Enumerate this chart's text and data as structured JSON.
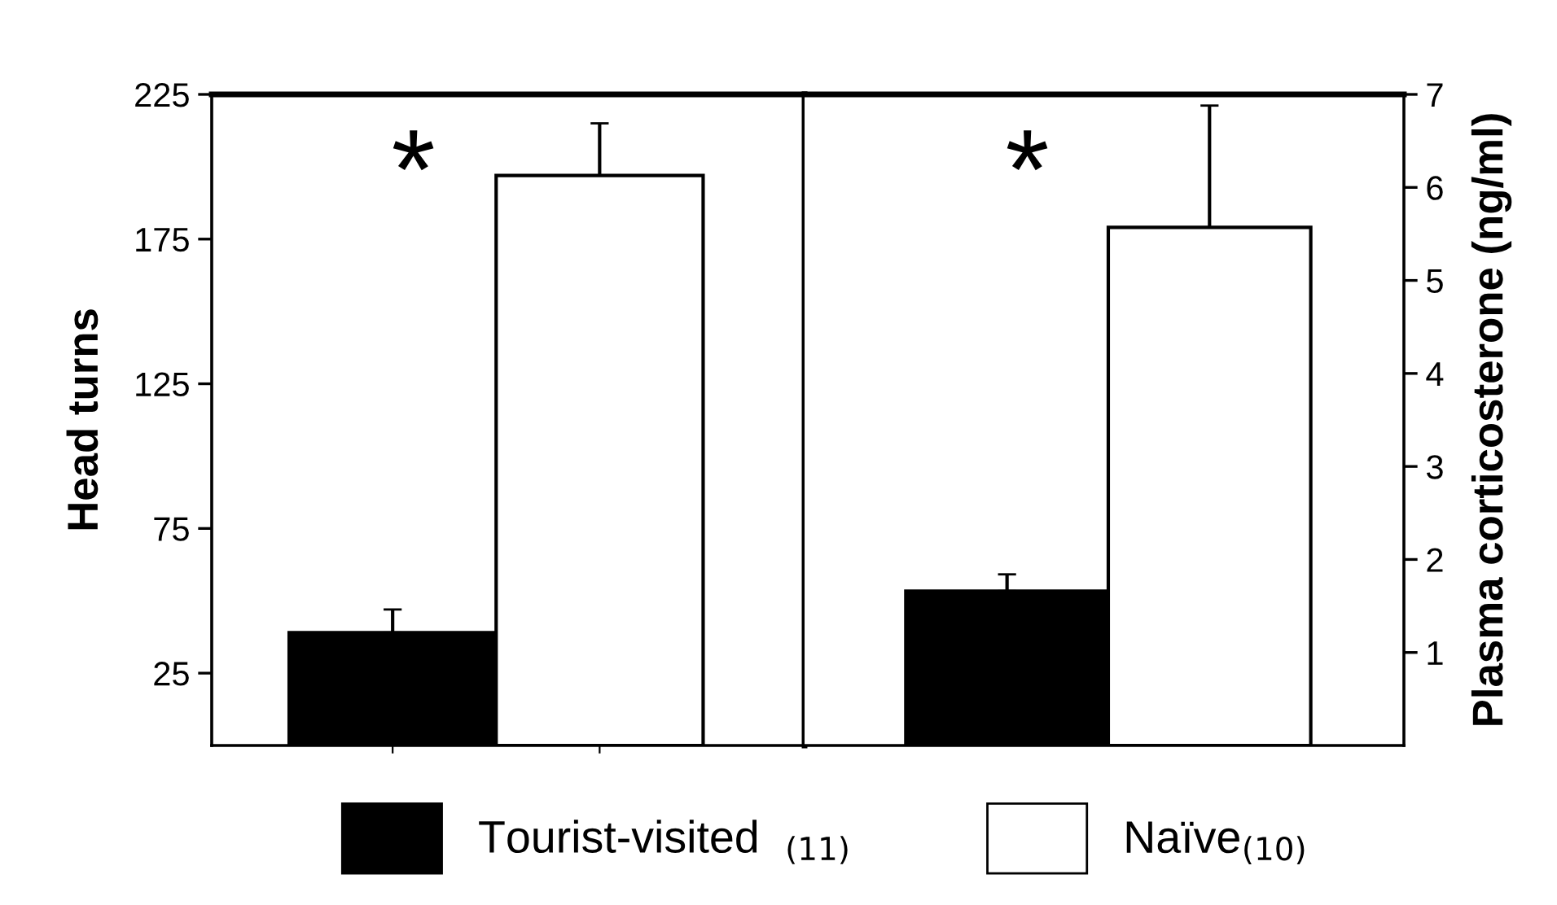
{
  "chart_data": [
    {
      "type": "bar",
      "categories": [
        null,
        null
      ],
      "ylabel": "Head turns",
      "ylim": [
        0,
        225
      ],
      "yticks": [
        25,
        75,
        125,
        175,
        225
      ],
      "tick_labels": "y",
      "legend": "bottom",
      "annotations": [
        "*"
      ],
      "series": [
        {
          "name": "Tourist-visited  $_{(11)}$",
          "color": "#000000",
          "values": [
            39,
            null
          ],
          "errors": [
            [
              39,
              47
            ],
            null
          ]
        },
        {
          "name": "Naïve$_{(10)}$",
          "color": "#ffffff",
          "values": [
            null,
            197
          ],
          "errors": [
            null,
            [
              197,
              215
            ]
          ]
        }
      ]
    },
    {
      "type": "bar",
      "categories": [
        null,
        null
      ],
      "y2label": "Plasma corticosterone (ng/ml)",
      "y2lim": [
        0,
        7
      ],
      "y2ticks": [
        1,
        2,
        3,
        4,
        5,
        6,
        7
      ],
      "tick_labels": "y",
      "annotations": [
        "*"
      ],
      "series": [
        {
          "color": "#000000",
          "values": [
            1.66,
            null
          ],
          "errors": [
            [
              1.66,
              1.84
            ],
            null
          ],
          "axis": "y2"
        },
        {
          "color": "#ffffff",
          "values": [
            null,
            5.57
          ],
          "errors": [
            null,
            [
              5.57,
              6.88
            ]
          ],
          "axis": "y2"
        }
      ]
    }
  ]
}
